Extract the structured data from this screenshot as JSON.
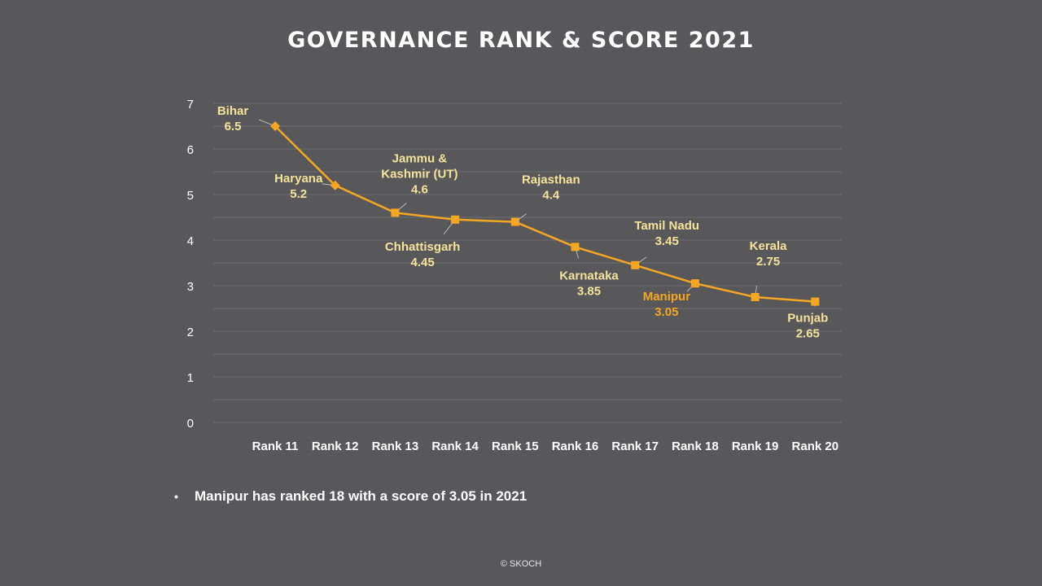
{
  "colors": {
    "background": "#58585a",
    "line": "#f5a623",
    "label": "#f3e39b",
    "highlight": "#f5a623",
    "grid": "#6e6e70",
    "tick": "#ffffff"
  },
  "chart_data": {
    "type": "line",
    "title": "GOVERNANCE RANK & SCORE 2021",
    "xlabel": "",
    "ylabel": "",
    "ylim": [
      0,
      7
    ],
    "yticks": [
      "0",
      "1",
      "2",
      "3",
      "4",
      "5",
      "6",
      "7"
    ],
    "categories": [
      "Rank 11",
      "Rank 12",
      "Rank 13",
      "Rank 14",
      "Rank 15",
      "Rank 16",
      "Rank 17",
      "Rank 18",
      "Rank 19",
      "Rank 20"
    ],
    "series": [
      {
        "values": [
          6.5,
          5.2,
          4.6,
          4.45,
          4.4,
          3.85,
          3.45,
          3.05,
          2.75,
          2.65
        ],
        "point_labels": [
          {
            "name": "Bihar",
            "value": "6.5"
          },
          {
            "name": "Haryana",
            "value": "5.2"
          },
          {
            "name": "Jammu &\nKashmir (UT)",
            "value": "4.6"
          },
          {
            "name": "Chhattisgarh",
            "value": "4.45"
          },
          {
            "name": "Rajasthan",
            "value": "4.4"
          },
          {
            "name": "Karnataka",
            "value": "3.85"
          },
          {
            "name": "Tamil Nadu",
            "value": "3.45"
          },
          {
            "name": "Manipur",
            "value": "3.05",
            "highlight": true
          },
          {
            "name": "Kerala",
            "value": "2.75"
          },
          {
            "name": "Punjab",
            "value": "2.65"
          }
        ]
      }
    ],
    "grid": true,
    "legend": "none"
  },
  "note": {
    "bullet": "•",
    "text": "Manipur has ranked 18 with a score of 3.05 in 2021"
  },
  "footer": {
    "copyright": "© SKOCH"
  }
}
